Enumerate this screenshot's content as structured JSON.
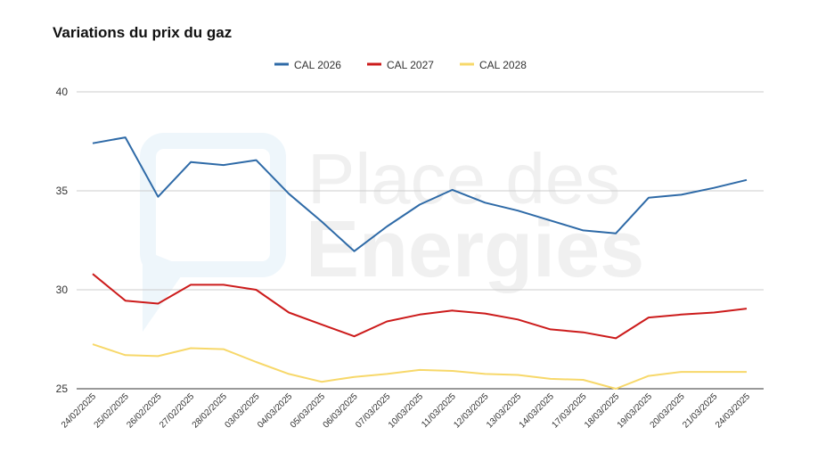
{
  "chart_data": {
    "type": "line",
    "title": "Variations du prix du gaz",
    "xlabel": "",
    "ylabel": "",
    "ylim": [
      25,
      40
    ],
    "yticks": [
      25,
      30,
      35,
      40
    ],
    "grid": true,
    "legend_position": "top-center",
    "watermark": {
      "line1": "Place des",
      "line2": "Energies"
    },
    "categories": [
      "24/02/2025",
      "25/02/2025",
      "26/02/2025",
      "27/02/2025",
      "28/02/2025",
      "03/03/2025",
      "04/03/2025",
      "05/03/2025",
      "06/03/2025",
      "07/03/2025",
      "10/03/2025",
      "11/03/2025",
      "12/03/2025",
      "13/03/2025",
      "14/03/2025",
      "17/03/2025",
      "18/03/2025",
      "19/03/2025",
      "20/03/2025",
      "21/03/2025",
      "24/03/2025"
    ],
    "series": [
      {
        "name": "CAL 2026",
        "color": "#2e6aa7",
        "values": [
          37.4,
          37.7,
          34.7,
          36.45,
          36.3,
          36.55,
          34.85,
          33.45,
          31.95,
          33.2,
          34.3,
          35.05,
          34.4,
          34.0,
          33.5,
          33.0,
          32.85,
          34.65,
          34.8,
          35.15,
          35.55
        ]
      },
      {
        "name": "CAL 2027",
        "color": "#cc1b1b",
        "values": [
          30.8,
          29.45,
          29.3,
          30.25,
          30.25,
          30.0,
          28.85,
          28.25,
          27.65,
          28.4,
          28.75,
          28.95,
          28.8,
          28.5,
          28.0,
          27.85,
          27.55,
          28.6,
          28.75,
          28.85,
          29.05
        ]
      },
      {
        "name": "CAL 2028",
        "color": "#f7d86a",
        "values": [
          27.25,
          26.7,
          26.65,
          27.05,
          27.0,
          26.35,
          25.75,
          25.35,
          25.6,
          25.75,
          25.95,
          25.9,
          25.75,
          25.7,
          25.5,
          25.45,
          25.0,
          25.65,
          25.85,
          25.85,
          25.85
        ]
      }
    ]
  }
}
